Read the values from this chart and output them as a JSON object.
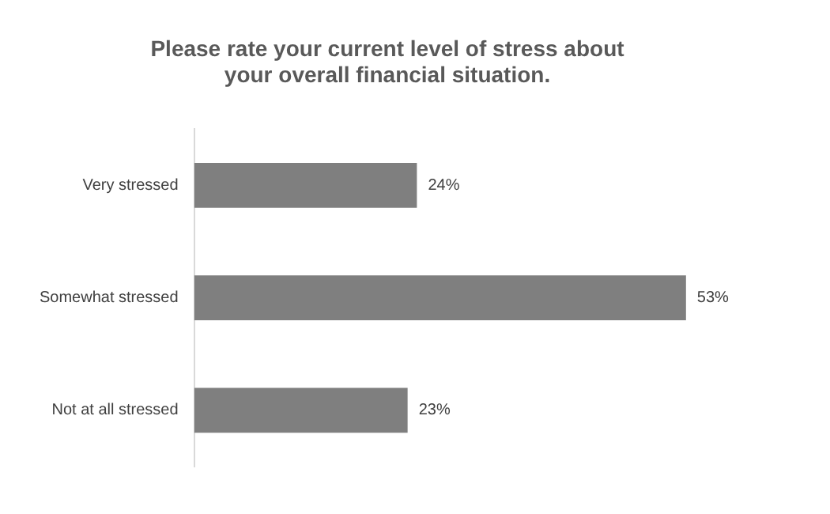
{
  "chart_data": {
    "type": "bar",
    "orientation": "horizontal",
    "title": "Please rate your current level of stress about\nyour overall financial situation.",
    "categories": [
      "Very stressed",
      "Somewhat stressed",
      "Not at all stressed"
    ],
    "values": [
      24,
      53,
      23
    ],
    "value_labels": [
      "24%",
      "53%",
      "23%"
    ],
    "color": "#7f7f7f"
  }
}
